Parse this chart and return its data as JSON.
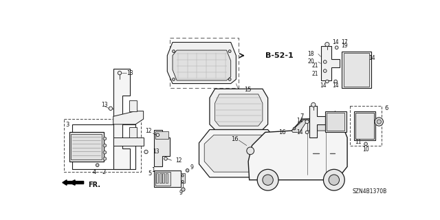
{
  "bg_color": "#ffffff",
  "line_color": "#1a1a1a",
  "text_color": "#111111",
  "diagram_code": "SZN4B1370B",
  "ref_label": "B-52-1",
  "direction_label": "FR.",
  "parts": {
    "labels": [
      "1",
      "2",
      "3",
      "4",
      "5",
      "6",
      "7",
      "9",
      "9",
      "10",
      "11",
      "12",
      "12",
      "13",
      "13",
      "13",
      "14",
      "14",
      "14",
      "14",
      "14",
      "14",
      "15",
      "16",
      "17",
      "18",
      "19",
      "20",
      "21",
      "21",
      "21"
    ]
  },
  "image_url": ""
}
